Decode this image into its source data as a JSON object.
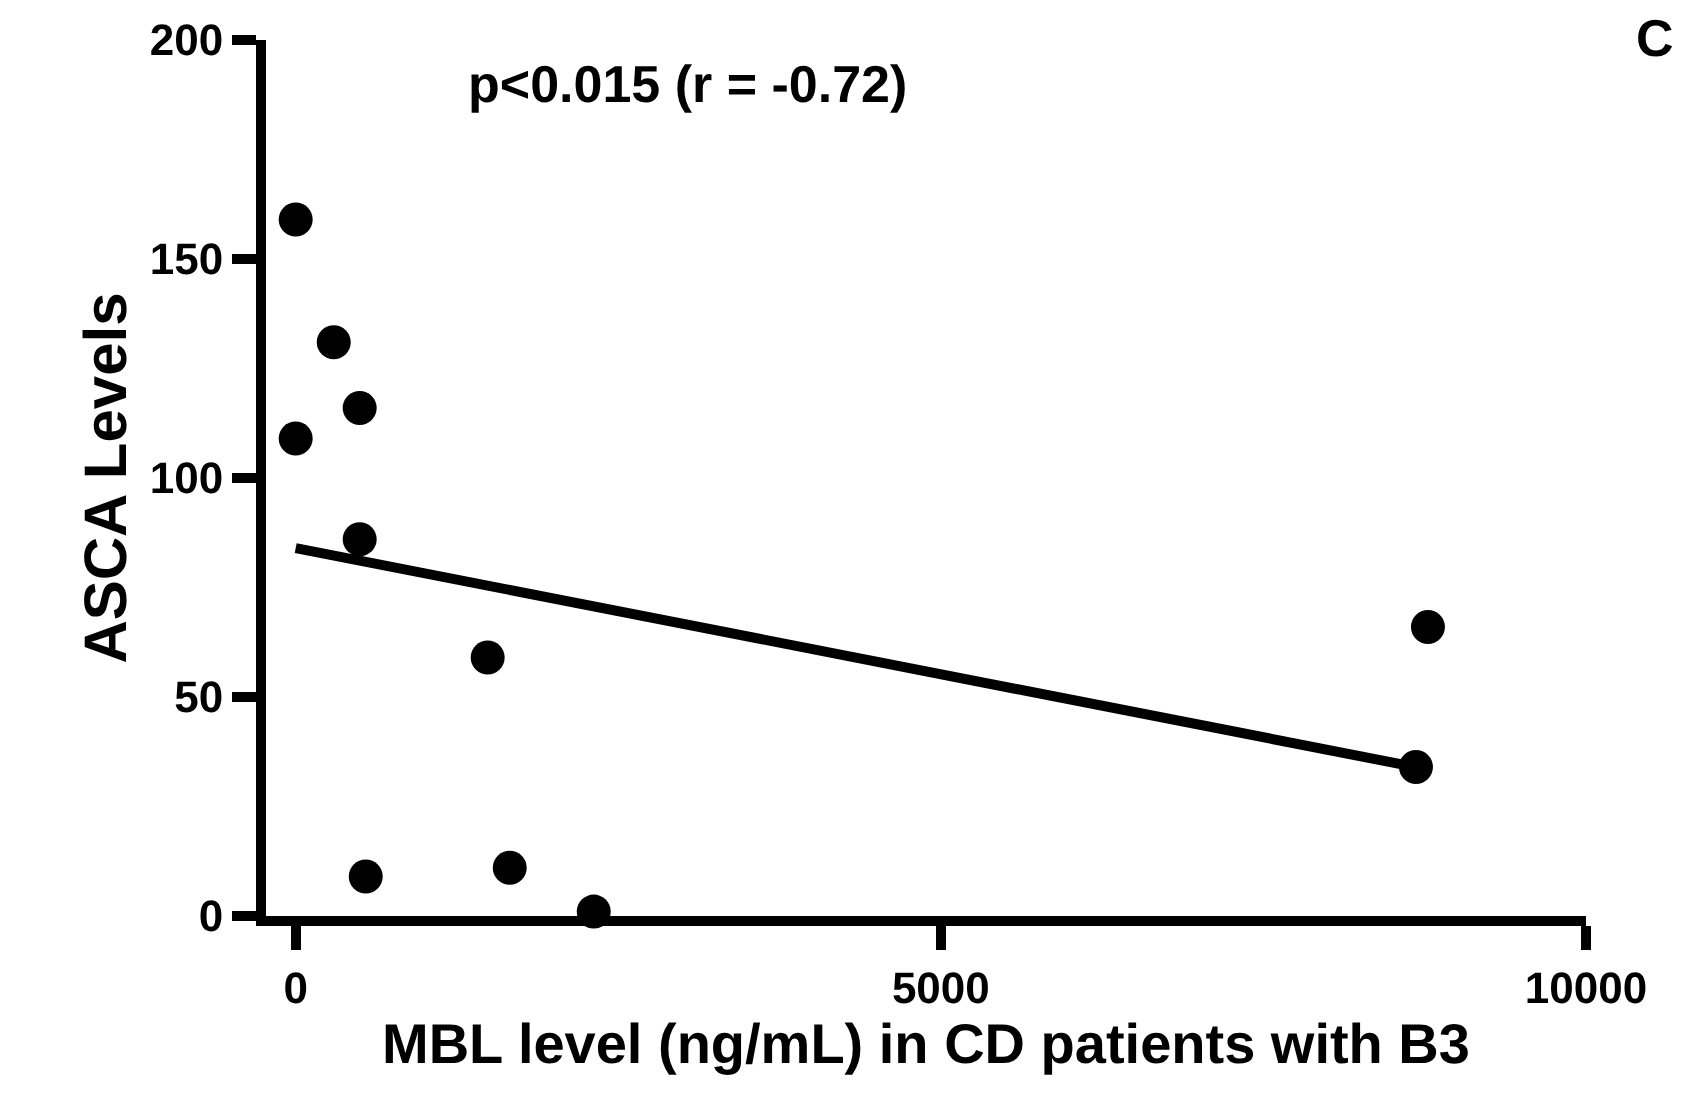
{
  "chart_data": {
    "type": "scatter",
    "xlabel": "MBL level (ng/mL) in CD patients with B3",
    "ylabel": "ASCA Levels",
    "annotations": [
      "p<0.015 (r = -0.72)",
      "C"
    ],
    "series": [
      {
        "color": "#000000",
        "marker": "circle",
        "x": [
          0,
          0,
          295,
          496,
          496,
          1488,
          543,
          1659,
          2310,
          8775,
          8682
        ],
        "values": [
          159,
          109,
          131,
          116,
          86,
          59,
          9,
          11,
          1,
          66,
          34
        ]
      },
      {
        "type": "line",
        "color": "#000000",
        "marker": "none",
        "line_style": "solid",
        "x": [
          0,
          8682
        ],
        "values": [
          84,
          34
        ]
      }
    ],
    "xlim": [
      -230,
      10000
    ],
    "xticks": [
      0,
      5000,
      10000
    ],
    "ylim": [
      0,
      200
    ],
    "yticks": [
      0,
      50,
      100,
      150,
      200
    ]
  }
}
